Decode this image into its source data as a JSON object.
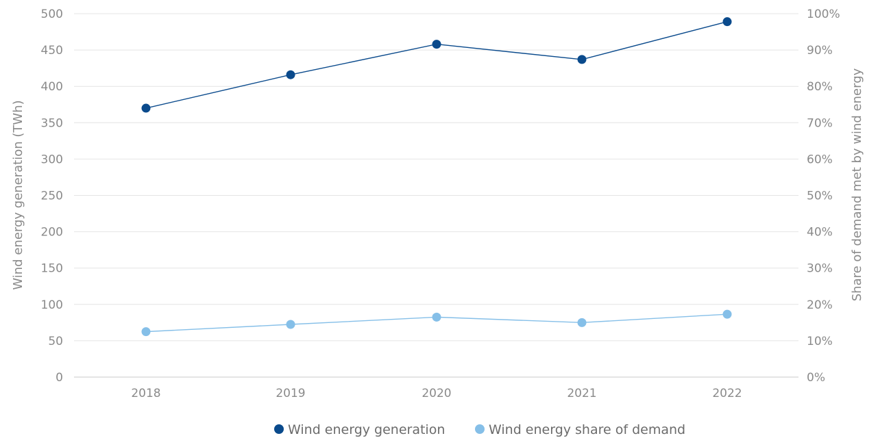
{
  "chart_data": {
    "type": "line",
    "x": [
      "2018",
      "2019",
      "2020",
      "2021",
      "2022"
    ],
    "series": [
      {
        "name": "Wind energy generation",
        "axis": "left",
        "color": "#0a4a8c",
        "values": [
          370,
          416,
          458,
          437,
          489
        ]
      },
      {
        "name": "Wind energy share of demand",
        "axis": "right",
        "color": "#85bfe8",
        "values": [
          12.5,
          14.5,
          16.5,
          15.0,
          17.3
        ]
      }
    ],
    "ylabel_left": "Wind energy generation (TWh)",
    "ylabel_right": "Share of demand met by wind energy",
    "ylim_left": [
      0,
      500
    ],
    "ylim_right": [
      0,
      100
    ],
    "yticks_left": [
      "0",
      "50",
      "100",
      "150",
      "200",
      "250",
      "300",
      "350",
      "400",
      "450",
      "500"
    ],
    "yticks_right": [
      "0%",
      "10%",
      "20%",
      "30%",
      "40%",
      "50%",
      "60%",
      "70%",
      "80%",
      "90%",
      "100%"
    ],
    "grid": true,
    "legend_position": "bottom-center"
  }
}
